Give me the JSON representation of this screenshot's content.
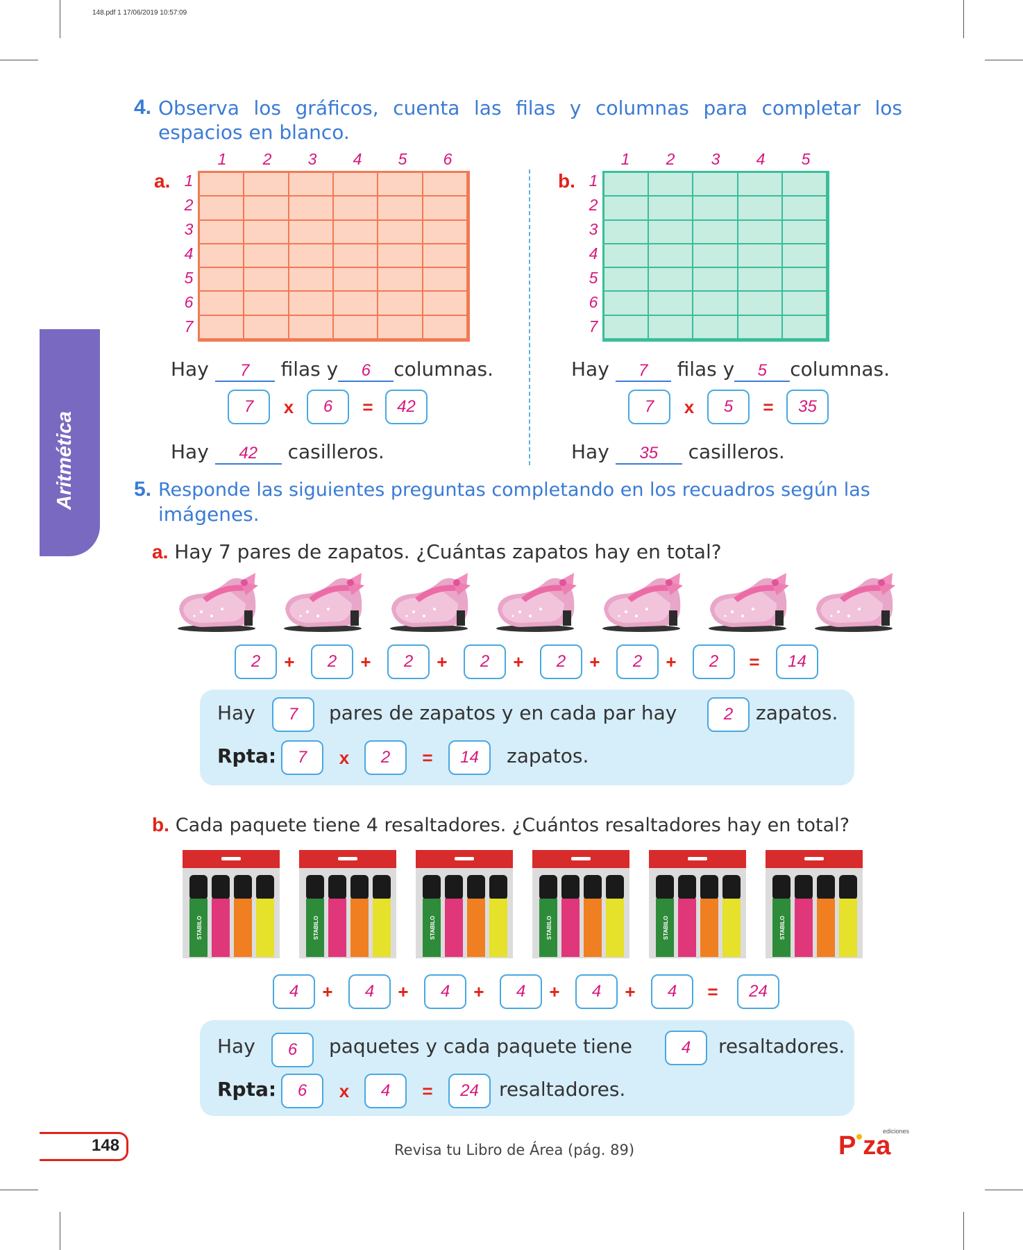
{
  "header": {
    "meta": "148.pdf   1   17/06/2019   10:57:09"
  },
  "side_tab": {
    "label": "Aritmética"
  },
  "q4": {
    "number": "4.",
    "text_words": [
      "Observa",
      "los",
      "gráficos,",
      "cuenta",
      "las",
      "filas",
      "y",
      "columnas",
      "para",
      "completar",
      "los"
    ],
    "text_line2": "espacios en blanco.",
    "a": {
      "letter": "a.",
      "col_labels": [
        "1",
        "2",
        "3",
        "4",
        "5",
        "6"
      ],
      "row_labels": [
        "1",
        "2",
        "3",
        "4",
        "5",
        "6",
        "7"
      ],
      "hay": "Hay",
      "filas_y": "filas y",
      "columnas": "columnas.",
      "rows": "7",
      "cols": "6",
      "mult": [
        "7",
        "x",
        "6",
        "=",
        "42"
      ],
      "casilleros_count": "42",
      "casilleros": "casilleros."
    },
    "b": {
      "letter": "b.",
      "col_labels": [
        "1",
        "2",
        "3",
        "4",
        "5"
      ],
      "row_labels": [
        "1",
        "2",
        "3",
        "4",
        "5",
        "6",
        "7"
      ],
      "hay": "Hay",
      "filas_y": "filas y",
      "columnas": "columnas.",
      "rows": "7",
      "cols": "5",
      "mult": [
        "7",
        "x",
        "5",
        "=",
        "35"
      ],
      "casilleros_count": "35",
      "casilleros": "casilleros."
    }
  },
  "q5": {
    "number": "5.",
    "text_line1": "Responde las siguientes preguntas completando en los recuadros según las",
    "text_line2": "imágenes.",
    "a": {
      "letter": "a.",
      "question": "Hay 7 pares de zapatos. ¿Cuántas zapatos hay en total?",
      "shoe_count": 7,
      "sum_values": [
        "2",
        "2",
        "2",
        "2",
        "2",
        "2",
        "2"
      ],
      "plus": "+",
      "equals": "=",
      "sum_result": "14",
      "sentence_hay": "Hay",
      "pares_value": "7",
      "sentence_mid": "pares de zapatos y en cada par hay",
      "per_value": "2",
      "sentence_end": "zapatos.",
      "rpta_label": "Rpta:",
      "rpta": [
        "7",
        "x",
        "2",
        "=",
        "14"
      ],
      "rpta_unit": "zapatos."
    },
    "b": {
      "letter": "b.",
      "question": "Cada paquete tiene 4 resaltadores. ¿Cuántos resaltadores hay en total?",
      "pack_count": 6,
      "pack_brand": "STABILO",
      "marker_brand": "STABILO BOSS",
      "sum_values": [
        "4",
        "4",
        "4",
        "4",
        "4",
        "4"
      ],
      "plus": "+",
      "equals": "=",
      "sum_result": "24",
      "sentence_hay": "Hay",
      "paquetes_value": "6",
      "sentence_mid": "paquetes y cada paquete tiene",
      "per_value": "4",
      "sentence_end": "resaltadores.",
      "rpta_label": "Rpta:",
      "rpta": [
        "6",
        "x",
        "4",
        "=",
        "24"
      ],
      "rpta_unit": "resaltadores."
    }
  },
  "footer": {
    "page_number": "148",
    "note": "Revisa tu Libro de Área (pág. 89)",
    "logo": "PIZA",
    "logo_sub": "ediciones"
  },
  "colors": {
    "title_blue": "#3a7bd5",
    "answer_pink": "#d6177e",
    "accent_red": "#e2231a",
    "grid_a": "#ef7b56",
    "grid_b": "#3bbd9c",
    "panel": "#d6eef9",
    "tab": "#7a69c0"
  }
}
